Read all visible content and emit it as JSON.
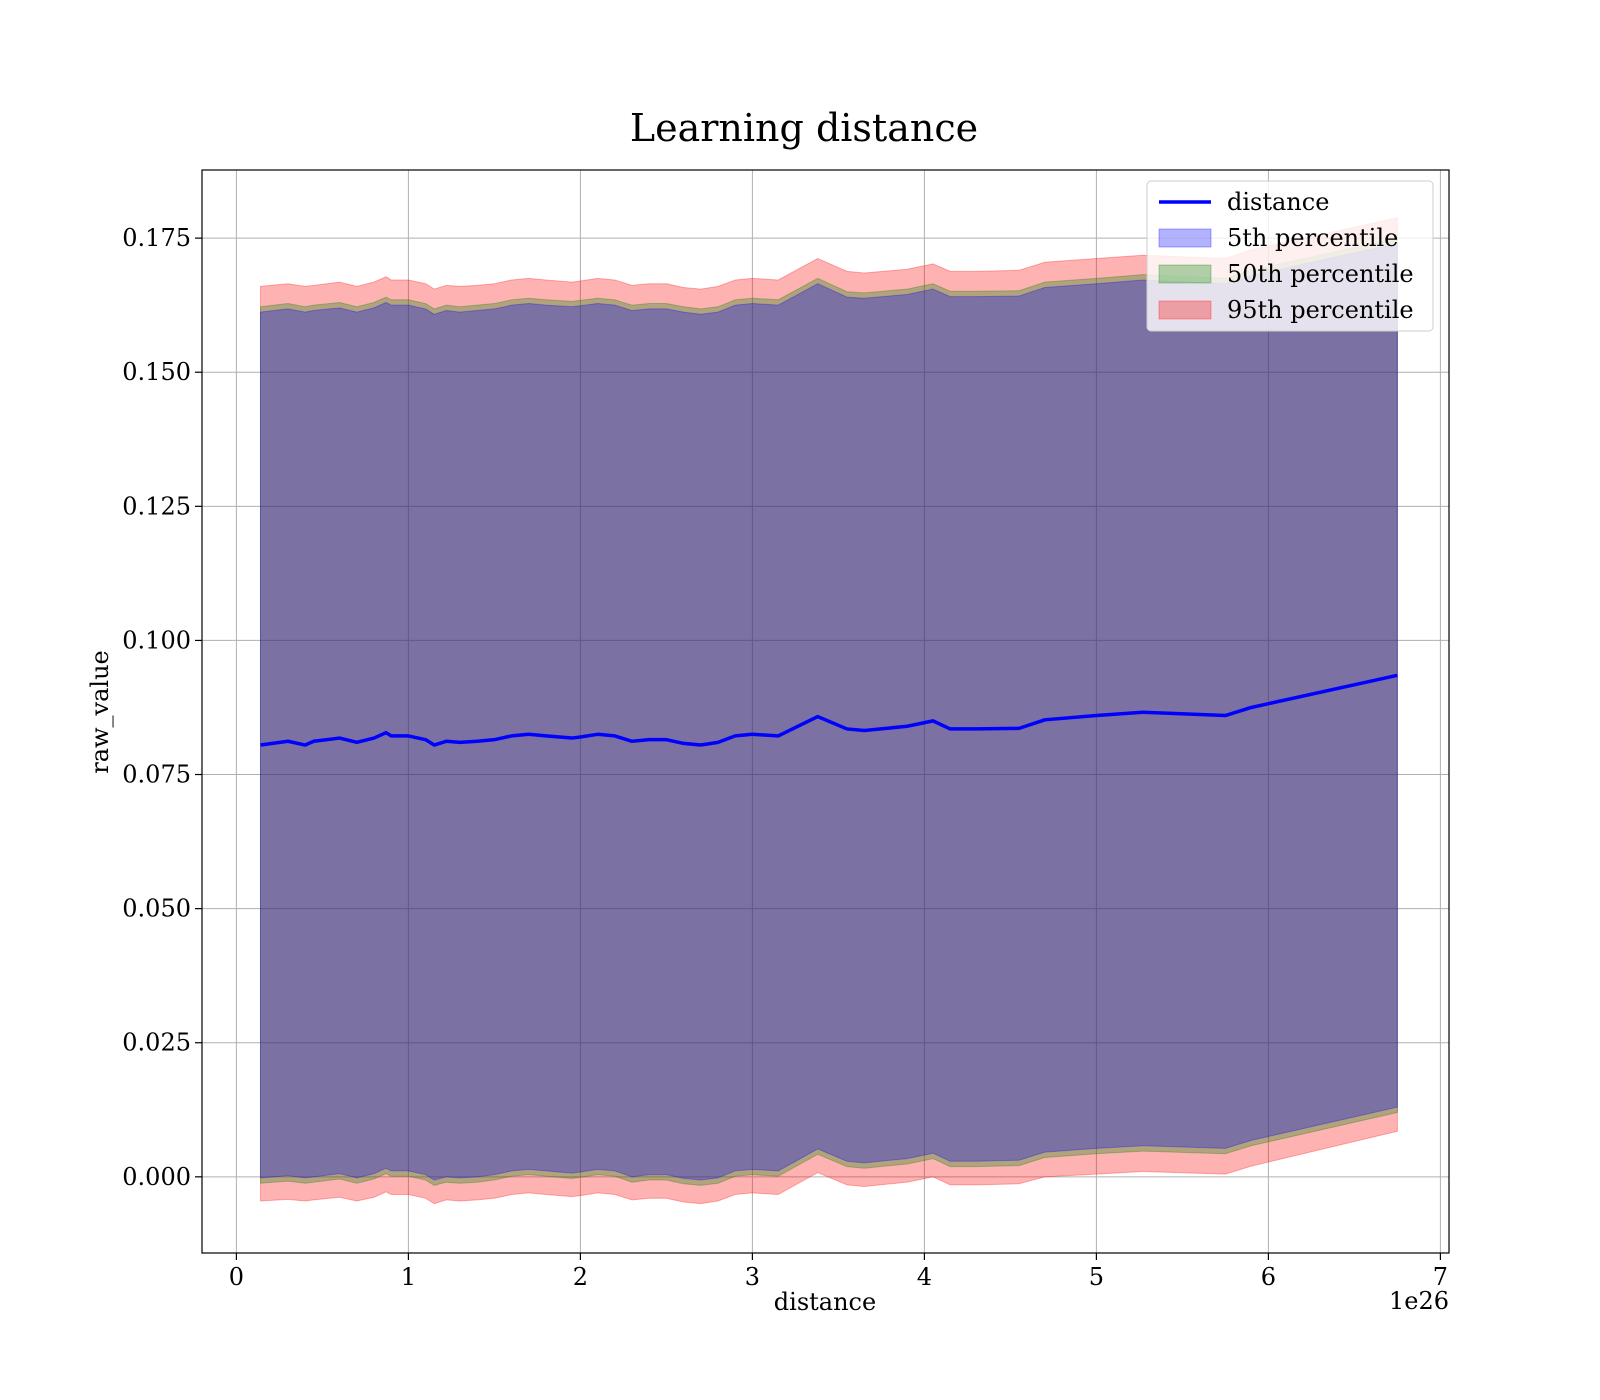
{
  "chart_data": {
    "type": "line",
    "title": "Learning distance",
    "xlabel": "distance",
    "ylabel": "raw_value",
    "x_offset_label": "1e26",
    "xlim": [
      -0.2,
      7.05
    ],
    "ylim": [
      -0.0142,
      0.1877
    ],
    "x_ticks": [
      0,
      1,
      2,
      3,
      4,
      5,
      6,
      7
    ],
    "x_tick_labels": [
      "0",
      "1",
      "2",
      "3",
      "4",
      "5",
      "6",
      "7"
    ],
    "y_ticks": [
      0.0,
      0.025,
      0.05,
      0.075,
      0.1,
      0.125,
      0.15,
      0.175
    ],
    "y_tick_labels": [
      "0.000",
      "0.025",
      "0.050",
      "0.075",
      "0.100",
      "0.125",
      "0.150",
      "0.175"
    ],
    "grid": true,
    "legend_position": "top-right",
    "legend": [
      {
        "label": "distance",
        "kind": "line",
        "color": "#0000ff"
      },
      {
        "label": "5th percentile",
        "kind": "patch",
        "color": "#0000ff",
        "alpha": 0.3
      },
      {
        "label": "50th percentile",
        "kind": "patch",
        "color": "#008000",
        "alpha": 0.3
      },
      {
        "label": "95th percentile",
        "kind": "patch",
        "color": "#ff0000",
        "alpha": 0.3
      }
    ],
    "x": [
      0.14,
      0.3,
      0.4,
      0.45,
      0.6,
      0.7,
      0.8,
      0.87,
      0.9,
      1.0,
      1.1,
      1.15,
      1.22,
      1.3,
      1.4,
      1.5,
      1.6,
      1.7,
      1.8,
      1.95,
      2.0,
      2.1,
      2.2,
      2.3,
      2.4,
      2.5,
      2.6,
      2.7,
      2.8,
      2.9,
      3.0,
      3.15,
      3.38,
      3.55,
      3.65,
      3.9,
      4.05,
      4.15,
      4.3,
      4.55,
      4.7,
      5.0,
      5.27,
      5.75,
      5.9,
      6.75
    ],
    "series": [
      {
        "name": "distance",
        "color": "#0000ff",
        "values": [
          0.0805,
          0.0812,
          0.0805,
          0.0812,
          0.0818,
          0.081,
          0.0818,
          0.0828,
          0.0822,
          0.0822,
          0.0815,
          0.0805,
          0.0812,
          0.081,
          0.0812,
          0.0815,
          0.0822,
          0.0825,
          0.0822,
          0.0818,
          0.082,
          0.0825,
          0.0822,
          0.0812,
          0.0815,
          0.0815,
          0.0808,
          0.0805,
          0.081,
          0.0822,
          0.0825,
          0.0822,
          0.0858,
          0.0835,
          0.0832,
          0.084,
          0.085,
          0.0835,
          0.0835,
          0.0836,
          0.0852,
          0.086,
          0.0866,
          0.086,
          0.0875,
          0.0935
        ]
      }
    ],
    "bands": [
      {
        "name": "95th percentile",
        "color": "#ff0000",
        "alpha": 0.3,
        "upper": [
          0.166,
          0.1665,
          0.166,
          0.1662,
          0.1668,
          0.166,
          0.1668,
          0.1678,
          0.1672,
          0.1672,
          0.1665,
          0.1655,
          0.1662,
          0.166,
          0.1662,
          0.1665,
          0.1672,
          0.1675,
          0.1672,
          0.1668,
          0.167,
          0.1675,
          0.1672,
          0.1662,
          0.1665,
          0.1665,
          0.1658,
          0.1655,
          0.166,
          0.1672,
          0.1675,
          0.1672,
          0.1712,
          0.1688,
          0.1685,
          0.1692,
          0.1702,
          0.1688,
          0.1688,
          0.169,
          0.1705,
          0.1712,
          0.1718,
          0.1712,
          0.1728,
          0.1788
        ],
        "lower": [
          -0.0045,
          -0.0042,
          -0.0045,
          -0.0043,
          -0.0038,
          -0.0045,
          -0.0038,
          -0.0028,
          -0.0033,
          -0.0033,
          -0.004,
          -0.005,
          -0.0043,
          -0.0045,
          -0.0043,
          -0.004,
          -0.0033,
          -0.003,
          -0.0033,
          -0.0037,
          -0.0035,
          -0.003,
          -0.0033,
          -0.0043,
          -0.004,
          -0.004,
          -0.0047,
          -0.005,
          -0.0045,
          -0.0033,
          -0.003,
          -0.0033,
          0.0008,
          -0.0015,
          -0.0018,
          -0.001,
          0.0,
          -0.0015,
          -0.0015,
          -0.0013,
          0.0,
          0.0005,
          0.001,
          0.0005,
          0.002,
          0.0085
        ]
      },
      {
        "name": "50th percentile",
        "color": "#008000",
        "alpha": 0.3,
        "upper": [
          0.1622,
          0.1628,
          0.1622,
          0.1625,
          0.163,
          0.1622,
          0.163,
          0.164,
          0.1635,
          0.1635,
          0.1628,
          0.1618,
          0.1625,
          0.1622,
          0.1625,
          0.1628,
          0.1635,
          0.1638,
          0.1635,
          0.1632,
          0.1634,
          0.1638,
          0.1635,
          0.1625,
          0.1628,
          0.1628,
          0.1622,
          0.1618,
          0.1622,
          0.1635,
          0.1638,
          0.1635,
          0.1675,
          0.165,
          0.1648,
          0.1655,
          0.1665,
          0.1651,
          0.1651,
          0.1652,
          0.1668,
          0.1675,
          0.1682,
          0.1675,
          0.169,
          0.175
        ],
        "lower": [
          -0.0012,
          -0.0008,
          -0.0012,
          -0.001,
          -0.0004,
          -0.0012,
          -0.0004,
          0.0006,
          0.0001,
          0.0001,
          -0.0006,
          -0.0016,
          -0.001,
          -0.0012,
          -0.001,
          -0.0006,
          0.0001,
          0.0004,
          0.0001,
          -0.0003,
          -0.0001,
          0.0004,
          0.0001,
          -0.001,
          -0.0006,
          -0.0006,
          -0.0013,
          -0.0016,
          -0.0012,
          0.0001,
          0.0004,
          0.0001,
          0.0042,
          0.0019,
          0.0016,
          0.0024,
          0.0034,
          0.0019,
          0.0019,
          0.0021,
          0.0036,
          0.0043,
          0.0048,
          0.0043,
          0.0058,
          0.012
        ]
      },
      {
        "name": "5th percentile",
        "color": "#0000ff",
        "alpha": 0.3,
        "upper": [
          0.1612,
          0.1618,
          0.1612,
          0.1615,
          0.162,
          0.1612,
          0.162,
          0.163,
          0.1625,
          0.1625,
          0.1618,
          0.1608,
          0.1615,
          0.1612,
          0.1615,
          0.1618,
          0.1625,
          0.1628,
          0.1625,
          0.1622,
          0.1624,
          0.1628,
          0.1625,
          0.1615,
          0.1618,
          0.1618,
          0.1612,
          0.1608,
          0.1612,
          0.1625,
          0.1628,
          0.1625,
          0.1665,
          0.164,
          0.1638,
          0.1645,
          0.1655,
          0.1641,
          0.1641,
          0.1642,
          0.1658,
          0.1665,
          0.1672,
          0.1665,
          0.168,
          0.174
        ],
        "lower": [
          -0.0002,
          0.0002,
          -0.0002,
          0.0,
          0.0006,
          -0.0002,
          0.0006,
          0.0016,
          0.0011,
          0.0011,
          0.0004,
          -0.0006,
          0.0,
          -0.0002,
          0.0,
          0.0004,
          0.0011,
          0.0014,
          0.0011,
          0.0007,
          0.0009,
          0.0014,
          0.0011,
          0.0,
          0.0004,
          0.0004,
          -0.0003,
          -0.0006,
          -0.0002,
          0.0011,
          0.0014,
          0.0011,
          0.0052,
          0.0029,
          0.0026,
          0.0034,
          0.0044,
          0.0029,
          0.0029,
          0.0031,
          0.0046,
          0.0053,
          0.0058,
          0.0053,
          0.0068,
          0.013
        ]
      }
    ]
  }
}
